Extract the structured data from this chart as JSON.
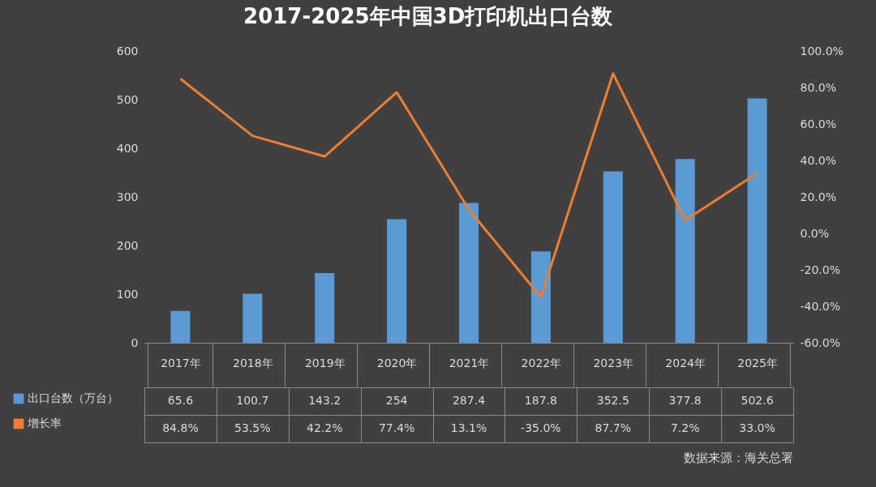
{
  "chart_data": {
    "type": "bar",
    "title": "2017-2025年中国3D打印机出口台数",
    "categories": [
      "2017年",
      "2018年",
      "2019年",
      "2020年",
      "2021年",
      "2022年",
      "2023年",
      "2024年",
      "2025年"
    ],
    "series": [
      {
        "name": "出口台数（万台）",
        "color": "#5b9bd5",
        "values": [
          65.6,
          100.7,
          143.2,
          254,
          287.4,
          187.8,
          352.5,
          377.8,
          502.6
        ],
        "value_labels": [
          "65.6",
          "100.7",
          "143.2",
          "254",
          "287.4",
          "187.8",
          "352.5",
          "377.8",
          "502.6"
        ]
      },
      {
        "name": "增长率",
        "type": "line",
        "axis": "y2",
        "color": "#ed7d31",
        "values": [
          84.8,
          53.5,
          42.2,
          77.4,
          13.1,
          -35.0,
          87.7,
          7.2,
          33.0
        ],
        "value_labels": [
          "84.8%",
          "53.5%",
          "42.2%",
          "77.4%",
          "13.1%",
          "-35.0%",
          "87.7%",
          "7.2%",
          "33.0%"
        ]
      }
    ],
    "ylim": [
      0,
      600
    ],
    "yticks": [
      0,
      100,
      200,
      300,
      400,
      500,
      600
    ],
    "y2lim": [
      -60,
      100
    ],
    "y2ticks": [
      {
        "value": -60,
        "label": "-60.0%"
      },
      {
        "value": -40,
        "label": "-40.0%"
      },
      {
        "value": -20,
        "label": "-20.0%"
      },
      {
        "value": 0,
        "label": "0.0%"
      },
      {
        "value": 20,
        "label": "20.0%"
      },
      {
        "value": 40,
        "label": "40.0%"
      },
      {
        "value": 60,
        "label": "60.0%"
      },
      {
        "value": 80,
        "label": "80.0%"
      },
      {
        "value": 100,
        "label": "100.0%"
      }
    ],
    "legend": "bottom left",
    "grid": false,
    "marker": "none",
    "annotations": [
      "数据来源：海关总署"
    ]
  }
}
